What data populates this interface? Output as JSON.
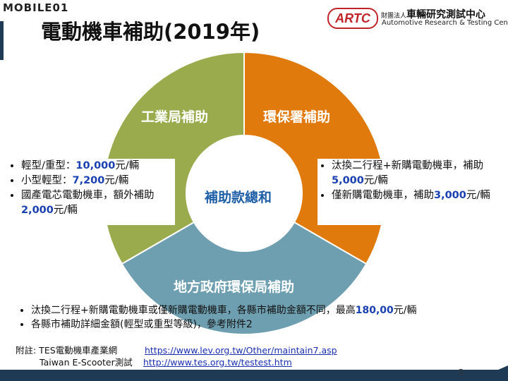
{
  "header": {
    "brand_text": "MOBILE01",
    "title": "電動機車補助(2019年)",
    "org_logo": "ARTC",
    "org_prefix": "財團法人",
    "org_name_cn": "車輛研究測試中心",
    "org_name_en": "Automotive Research & Testing Center"
  },
  "diagram": {
    "center": "補助款總和",
    "segments": [
      {
        "label": "工業局補助",
        "color": "#9aab4e"
      },
      {
        "label": "環保署補助",
        "color": "#e07a0c"
      },
      {
        "label": "地方政府環保局補助",
        "color": "#6e9fb0"
      }
    ]
  },
  "left_box": {
    "items": [
      {
        "pre": "輕型/重型：",
        "hl": "10,000",
        "post": "元/輛"
      },
      {
        "pre": "小型輕型：",
        "hl": "7,200",
        "post": "元/輛"
      },
      {
        "pre": "國產電芯電動機車，額外補助",
        "hl": "2,000",
        "post": "元/輛"
      }
    ]
  },
  "right_box": {
    "items": [
      {
        "pre": "汰換二行程+新購電動機車，補助",
        "hl": "5,000",
        "post": "元/輛"
      },
      {
        "pre": "僅新購電動機車，補助",
        "hl": "3,000",
        "post": "元/輛"
      }
    ]
  },
  "notes": [
    {
      "pre": "汰換二行程+新購電動機車或僅新購電動機車，各縣市補助金額不同，最高",
      "hl": "180,00",
      "post": "元/輛"
    },
    {
      "pre": "各縣市補助詳細金額(輕型或重型等級)，參考附件2",
      "hl": "",
      "post": ""
    }
  ],
  "footnote": {
    "row1_label": "附註: TES電動機車產業網",
    "row1_link": "https://www.lev.org.tw/Other/maintain7.asp",
    "row2_label": "Taiwan E-Scooter測試",
    "row2_link": "http://www.tes.org.tw/testest.htm"
  },
  "page_number": "5"
}
